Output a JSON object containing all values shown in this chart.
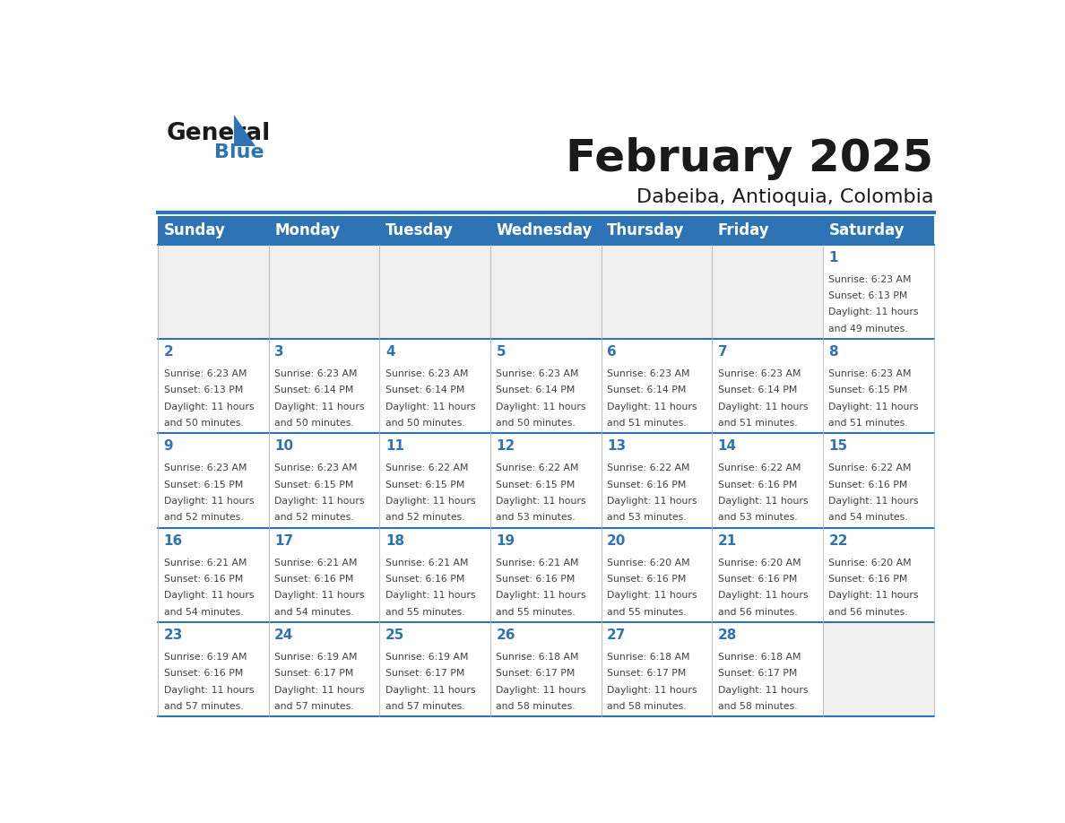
{
  "title": "February 2025",
  "subtitle": "Dabeiba, Antioquia, Colombia",
  "days_of_week": [
    "Sunday",
    "Monday",
    "Tuesday",
    "Wednesday",
    "Thursday",
    "Friday",
    "Saturday"
  ],
  "header_bg": "#2E74B5",
  "header_text_color": "#FFFFFF",
  "cell_bg_light": "#FFFFFF",
  "cell_bg_gray": "#F0F0F0",
  "separator_color": "#2E74B5",
  "day_num_color": "#2E74B5",
  "info_text_color": "#404040",
  "grid_line_color": "#BBBBBB",
  "background_color": "#FFFFFF",
  "logo_general_color": "#1A1A1A",
  "logo_blue_color": "#2E74B5",
  "calendar_data": [
    {
      "day": 1,
      "col": 6,
      "row": 0,
      "sunrise": "6:23 AM",
      "sunset": "6:13 PM",
      "daylight_hours": 11,
      "daylight_minutes": 49
    },
    {
      "day": 2,
      "col": 0,
      "row": 1,
      "sunrise": "6:23 AM",
      "sunset": "6:13 PM",
      "daylight_hours": 11,
      "daylight_minutes": 50
    },
    {
      "day": 3,
      "col": 1,
      "row": 1,
      "sunrise": "6:23 AM",
      "sunset": "6:14 PM",
      "daylight_hours": 11,
      "daylight_minutes": 50
    },
    {
      "day": 4,
      "col": 2,
      "row": 1,
      "sunrise": "6:23 AM",
      "sunset": "6:14 PM",
      "daylight_hours": 11,
      "daylight_minutes": 50
    },
    {
      "day": 5,
      "col": 3,
      "row": 1,
      "sunrise": "6:23 AM",
      "sunset": "6:14 PM",
      "daylight_hours": 11,
      "daylight_minutes": 50
    },
    {
      "day": 6,
      "col": 4,
      "row": 1,
      "sunrise": "6:23 AM",
      "sunset": "6:14 PM",
      "daylight_hours": 11,
      "daylight_minutes": 51
    },
    {
      "day": 7,
      "col": 5,
      "row": 1,
      "sunrise": "6:23 AM",
      "sunset": "6:14 PM",
      "daylight_hours": 11,
      "daylight_minutes": 51
    },
    {
      "day": 8,
      "col": 6,
      "row": 1,
      "sunrise": "6:23 AM",
      "sunset": "6:15 PM",
      "daylight_hours": 11,
      "daylight_minutes": 51
    },
    {
      "day": 9,
      "col": 0,
      "row": 2,
      "sunrise": "6:23 AM",
      "sunset": "6:15 PM",
      "daylight_hours": 11,
      "daylight_minutes": 52
    },
    {
      "day": 10,
      "col": 1,
      "row": 2,
      "sunrise": "6:23 AM",
      "sunset": "6:15 PM",
      "daylight_hours": 11,
      "daylight_minutes": 52
    },
    {
      "day": 11,
      "col": 2,
      "row": 2,
      "sunrise": "6:22 AM",
      "sunset": "6:15 PM",
      "daylight_hours": 11,
      "daylight_minutes": 52
    },
    {
      "day": 12,
      "col": 3,
      "row": 2,
      "sunrise": "6:22 AM",
      "sunset": "6:15 PM",
      "daylight_hours": 11,
      "daylight_minutes": 53
    },
    {
      "day": 13,
      "col": 4,
      "row": 2,
      "sunrise": "6:22 AM",
      "sunset": "6:16 PM",
      "daylight_hours": 11,
      "daylight_minutes": 53
    },
    {
      "day": 14,
      "col": 5,
      "row": 2,
      "sunrise": "6:22 AM",
      "sunset": "6:16 PM",
      "daylight_hours": 11,
      "daylight_minutes": 53
    },
    {
      "day": 15,
      "col": 6,
      "row": 2,
      "sunrise": "6:22 AM",
      "sunset": "6:16 PM",
      "daylight_hours": 11,
      "daylight_minutes": 54
    },
    {
      "day": 16,
      "col": 0,
      "row": 3,
      "sunrise": "6:21 AM",
      "sunset": "6:16 PM",
      "daylight_hours": 11,
      "daylight_minutes": 54
    },
    {
      "day": 17,
      "col": 1,
      "row": 3,
      "sunrise": "6:21 AM",
      "sunset": "6:16 PM",
      "daylight_hours": 11,
      "daylight_minutes": 54
    },
    {
      "day": 18,
      "col": 2,
      "row": 3,
      "sunrise": "6:21 AM",
      "sunset": "6:16 PM",
      "daylight_hours": 11,
      "daylight_minutes": 55
    },
    {
      "day": 19,
      "col": 3,
      "row": 3,
      "sunrise": "6:21 AM",
      "sunset": "6:16 PM",
      "daylight_hours": 11,
      "daylight_minutes": 55
    },
    {
      "day": 20,
      "col": 4,
      "row": 3,
      "sunrise": "6:20 AM",
      "sunset": "6:16 PM",
      "daylight_hours": 11,
      "daylight_minutes": 55
    },
    {
      "day": 21,
      "col": 5,
      "row": 3,
      "sunrise": "6:20 AM",
      "sunset": "6:16 PM",
      "daylight_hours": 11,
      "daylight_minutes": 56
    },
    {
      "day": 22,
      "col": 6,
      "row": 3,
      "sunrise": "6:20 AM",
      "sunset": "6:16 PM",
      "daylight_hours": 11,
      "daylight_minutes": 56
    },
    {
      "day": 23,
      "col": 0,
      "row": 4,
      "sunrise": "6:19 AM",
      "sunset": "6:16 PM",
      "daylight_hours": 11,
      "daylight_minutes": 57
    },
    {
      "day": 24,
      "col": 1,
      "row": 4,
      "sunrise": "6:19 AM",
      "sunset": "6:17 PM",
      "daylight_hours": 11,
      "daylight_minutes": 57
    },
    {
      "day": 25,
      "col": 2,
      "row": 4,
      "sunrise": "6:19 AM",
      "sunset": "6:17 PM",
      "daylight_hours": 11,
      "daylight_minutes": 57
    },
    {
      "day": 26,
      "col": 3,
      "row": 4,
      "sunrise": "6:18 AM",
      "sunset": "6:17 PM",
      "daylight_hours": 11,
      "daylight_minutes": 58
    },
    {
      "day": 27,
      "col": 4,
      "row": 4,
      "sunrise": "6:18 AM",
      "sunset": "6:17 PM",
      "daylight_hours": 11,
      "daylight_minutes": 58
    },
    {
      "day": 28,
      "col": 5,
      "row": 4,
      "sunrise": "6:18 AM",
      "sunset": "6:17 PM",
      "daylight_hours": 11,
      "daylight_minutes": 58
    }
  ],
  "num_rows": 5,
  "num_cols": 7
}
